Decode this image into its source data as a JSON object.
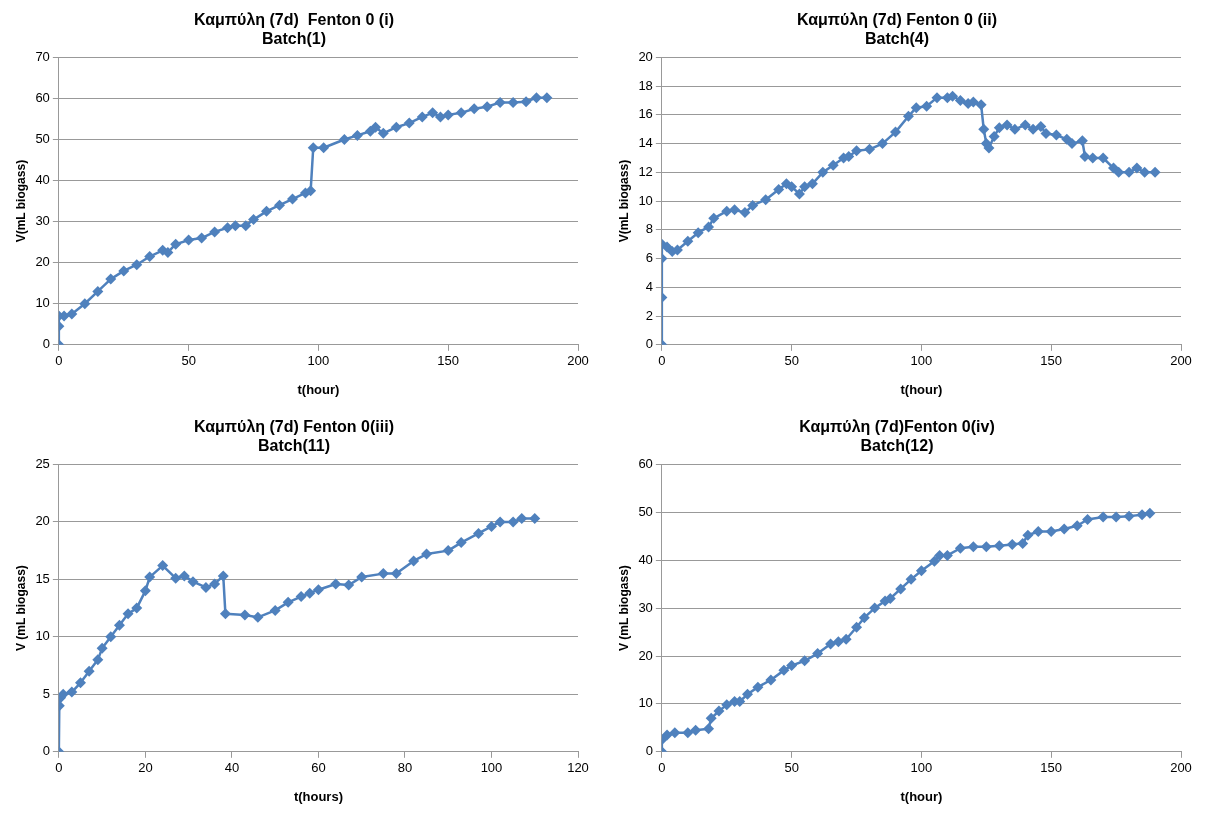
{
  "chart_data": [
    {
      "type": "line",
      "title": "Καμπύλη (7d)  Fenton 0 (i)",
      "subtitle": "Batch(1)",
      "xlabel": "t(hour)",
      "ylabel": "V(mL biogass)",
      "xlim": [
        0,
        200
      ],
      "xticks": [
        0,
        50,
        100,
        150,
        200
      ],
      "ylim": [
        0,
        70
      ],
      "yticks": [
        0,
        10,
        20,
        30,
        40,
        50,
        60,
        70
      ],
      "grid": "y",
      "legend": false,
      "marker": "diamond",
      "line_style": "solid",
      "series": [
        {
          "color": "#4f81bd",
          "x": [
            0,
            0,
            0,
            2,
            5,
            10,
            15,
            20,
            25,
            30,
            35,
            40,
            42,
            45,
            50,
            55,
            60,
            65,
            68,
            72,
            75,
            80,
            85,
            90,
            95,
            97,
            98,
            102,
            110,
            115,
            120,
            122,
            125,
            130,
            135,
            140,
            144,
            147,
            150,
            155,
            160,
            165,
            170,
            175,
            180,
            184,
            188
          ],
          "values": [
            0,
            4.5,
            7,
            7,
            7.5,
            10,
            13,
            16,
            18,
            19.5,
            21.5,
            23,
            22.5,
            24.5,
            25.5,
            26,
            27.5,
            28.5,
            29,
            29,
            30.5,
            32.5,
            34,
            35.5,
            37,
            37.5,
            48,
            48,
            50,
            51,
            52,
            53,
            51.5,
            53,
            54,
            55.5,
            56.5,
            55.5,
            56,
            56.5,
            57.5,
            58,
            59,
            59,
            59.2,
            60.2,
            60.2
          ]
        }
      ]
    },
    {
      "type": "line",
      "title": "Καμπύλη (7d) Fenton 0 (ii)",
      "subtitle": "Batch(4)",
      "xlabel": "t(hour)",
      "ylabel": "V(mL biogass)",
      "xlim": [
        0,
        200
      ],
      "xticks": [
        0,
        50,
        100,
        150,
        200
      ],
      "ylim": [
        0,
        20
      ],
      "yticks": [
        0,
        2,
        4,
        6,
        8,
        10,
        12,
        14,
        16,
        18,
        20
      ],
      "grid": "y",
      "legend": false,
      "marker": "diamond",
      "line_style": "solid",
      "series": [
        {
          "color": "#4f81bd",
          "x": [
            0,
            0,
            0,
            0,
            2,
            4,
            6,
            10,
            14,
            18,
            20,
            25,
            28,
            32,
            35,
            40,
            45,
            48,
            50,
            53,
            55,
            58,
            62,
            66,
            70,
            72,
            75,
            80,
            85,
            90,
            95,
            98,
            102,
            106,
            110,
            112,
            115,
            118,
            120,
            123,
            124,
            125,
            126,
            128,
            130,
            133,
            136,
            140,
            143,
            146,
            148,
            152,
            156,
            158,
            162,
            163,
            166,
            170,
            174,
            176,
            180,
            183,
            186,
            190
          ],
          "values": [
            0,
            3.3,
            6,
            7,
            6.8,
            6.5,
            6.6,
            7.2,
            7.8,
            8.2,
            8.8,
            9.3,
            9.4,
            9.2,
            9.7,
            10.1,
            10.8,
            11.2,
            11,
            10.5,
            11,
            11.2,
            12,
            12.5,
            13,
            13.1,
            13.5,
            13.6,
            14,
            14.8,
            15.9,
            16.5,
            16.6,
            17.2,
            17.2,
            17.3,
            17,
            16.8,
            16.9,
            16.7,
            15,
            14,
            13.7,
            14.5,
            15.1,
            15.3,
            15,
            15.3,
            15,
            15.2,
            14.7,
            14.6,
            14.3,
            14,
            14.2,
            13.1,
            13,
            13,
            12.3,
            12,
            12,
            12.3,
            12,
            12
          ]
        }
      ]
    },
    {
      "type": "line",
      "title": "Καμπύλη (7d) Fenton 0(iii)",
      "subtitle": "Batch(11)",
      "xlabel": "t(hours)",
      "ylabel": "V (mL biogass)",
      "xlim": [
        0,
        120
      ],
      "xticks": [
        0,
        20,
        40,
        60,
        80,
        100,
        120
      ],
      "ylim": [
        0,
        25
      ],
      "yticks": [
        0,
        5,
        10,
        15,
        20,
        25
      ],
      "grid": "y",
      "legend": false,
      "marker": "diamond",
      "line_style": "solid",
      "series": [
        {
          "color": "#4f81bd",
          "x": [
            0,
            0.1,
            0.4,
            1,
            3,
            5,
            7,
            9,
            10,
            12,
            14,
            16,
            18,
            20,
            21,
            24,
            27,
            29,
            31,
            34,
            36,
            38,
            38.5,
            43,
            46,
            50,
            53,
            56,
            58,
            60,
            64,
            67,
            70,
            75,
            78,
            82,
            85,
            90,
            93,
            97,
            100,
            102,
            105,
            107,
            110
          ],
          "values": [
            0,
            4,
            4.7,
            5,
            5.2,
            6,
            7,
            8,
            9,
            10,
            11,
            12,
            12.5,
            14,
            15.2,
            16.2,
            15.1,
            15.3,
            14.8,
            14.3,
            14.6,
            15.3,
            12,
            11.9,
            11.7,
            12.3,
            13,
            13.5,
            13.8,
            14.1,
            14.6,
            14.5,
            15.2,
            15.5,
            15.5,
            16.6,
            17.2,
            17.5,
            18.2,
            19,
            19.6,
            20,
            20,
            20.3,
            20.3
          ]
        }
      ]
    },
    {
      "type": "line",
      "title": "Καμπύλη (7d)Fenton 0(iv)",
      "subtitle": "Batch(12)",
      "xlabel": "t(hour)",
      "ylabel": "V (mL biogass)",
      "xlim": [
        0,
        200
      ],
      "xticks": [
        0,
        50,
        100,
        150,
        200
      ],
      "ylim": [
        0,
        60
      ],
      "yticks": [
        0,
        10,
        20,
        30,
        40,
        50,
        60
      ],
      "grid": "y",
      "legend": false,
      "marker": "diamond",
      "line_style": "solid",
      "series": [
        {
          "color": "#4f81bd",
          "x": [
            0,
            0,
            2,
            5,
            10,
            13,
            18,
            19,
            22,
            25,
            28,
            30,
            33,
            37,
            42,
            47,
            50,
            55,
            60,
            65,
            68,
            71,
            75,
            78,
            82,
            86,
            88,
            92,
            96,
            100,
            105,
            107,
            110,
            115,
            120,
            125,
            130,
            135,
            139,
            141,
            145,
            150,
            155,
            160,
            164,
            170,
            175,
            180,
            185,
            188
          ],
          "values": [
            0,
            2.5,
            3.5,
            4,
            4,
            4.5,
            4.8,
            7,
            8.5,
            9.8,
            10.5,
            10.5,
            12,
            13.5,
            15,
            17,
            18,
            19,
            20.5,
            22.5,
            23,
            23.5,
            26,
            28,
            30,
            31.5,
            32,
            34,
            36,
            37.8,
            39.8,
            41,
            41,
            42.5,
            42.8,
            42.8,
            43,
            43.3,
            43.5,
            45.2,
            46,
            46,
            46.5,
            47.2,
            48.5,
            49,
            49,
            49.2,
            49.5,
            49.8
          ]
        }
      ]
    }
  ]
}
